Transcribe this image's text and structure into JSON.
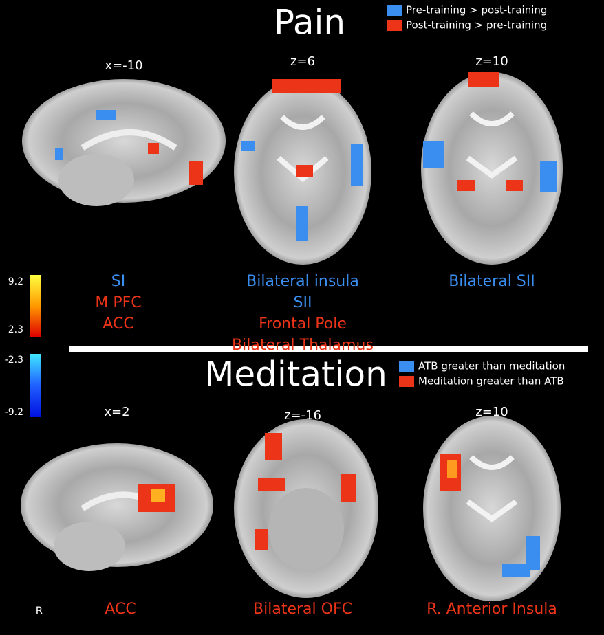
{
  "panels": [
    {
      "title": "Pain",
      "legend": [
        {
          "label": "Pre-training > post-training",
          "color": "#3a8ef0"
        },
        {
          "label": "Post-training > pre-training",
          "color": "#ec3418"
        }
      ],
      "views": [
        {
          "slice": "x=-10",
          "regions": [
            {
              "text": "SI",
              "color": "#3a8ef0"
            },
            {
              "text": "M PFC",
              "color": "#ec3418"
            },
            {
              "text": "ACC",
              "color": "#ec3418"
            }
          ]
        },
        {
          "slice": "z=6",
          "regions": [
            {
              "text": "Bilateral insula",
              "color": "#3a8ef0"
            },
            {
              "text": "SII",
              "color": "#3a8ef0"
            },
            {
              "text": "Frontal Pole",
              "color": "#ec3418"
            },
            {
              "text": "Bilateral Thalamus",
              "color": "#ec3418"
            }
          ]
        },
        {
          "slice": "z=10",
          "regions": [
            {
              "text": "Bilateral SII",
              "color": "#3a8ef0"
            }
          ]
        }
      ]
    },
    {
      "title": "Meditation",
      "legend": [
        {
          "label": "ATB greater than meditation",
          "color": "#3a8ef0"
        },
        {
          "label": "Meditation greater than ATB",
          "color": "#ec3418"
        }
      ],
      "views": [
        {
          "slice": "x=2",
          "regions": [
            {
              "text": "ACC",
              "color": "#ec3418"
            }
          ]
        },
        {
          "slice": "z=-16",
          "regions": [
            {
              "text": "Bilateral OFC",
              "color": "#ec3418"
            }
          ]
        },
        {
          "slice": "z=10",
          "regions": [
            {
              "text": "R. Anterior Insula",
              "color": "#ec3418"
            }
          ]
        }
      ]
    }
  ],
  "colorbar": {
    "labels": [
      "9.2",
      "2.3",
      "-2.3",
      "-9.2"
    ]
  },
  "orientation": "R"
}
